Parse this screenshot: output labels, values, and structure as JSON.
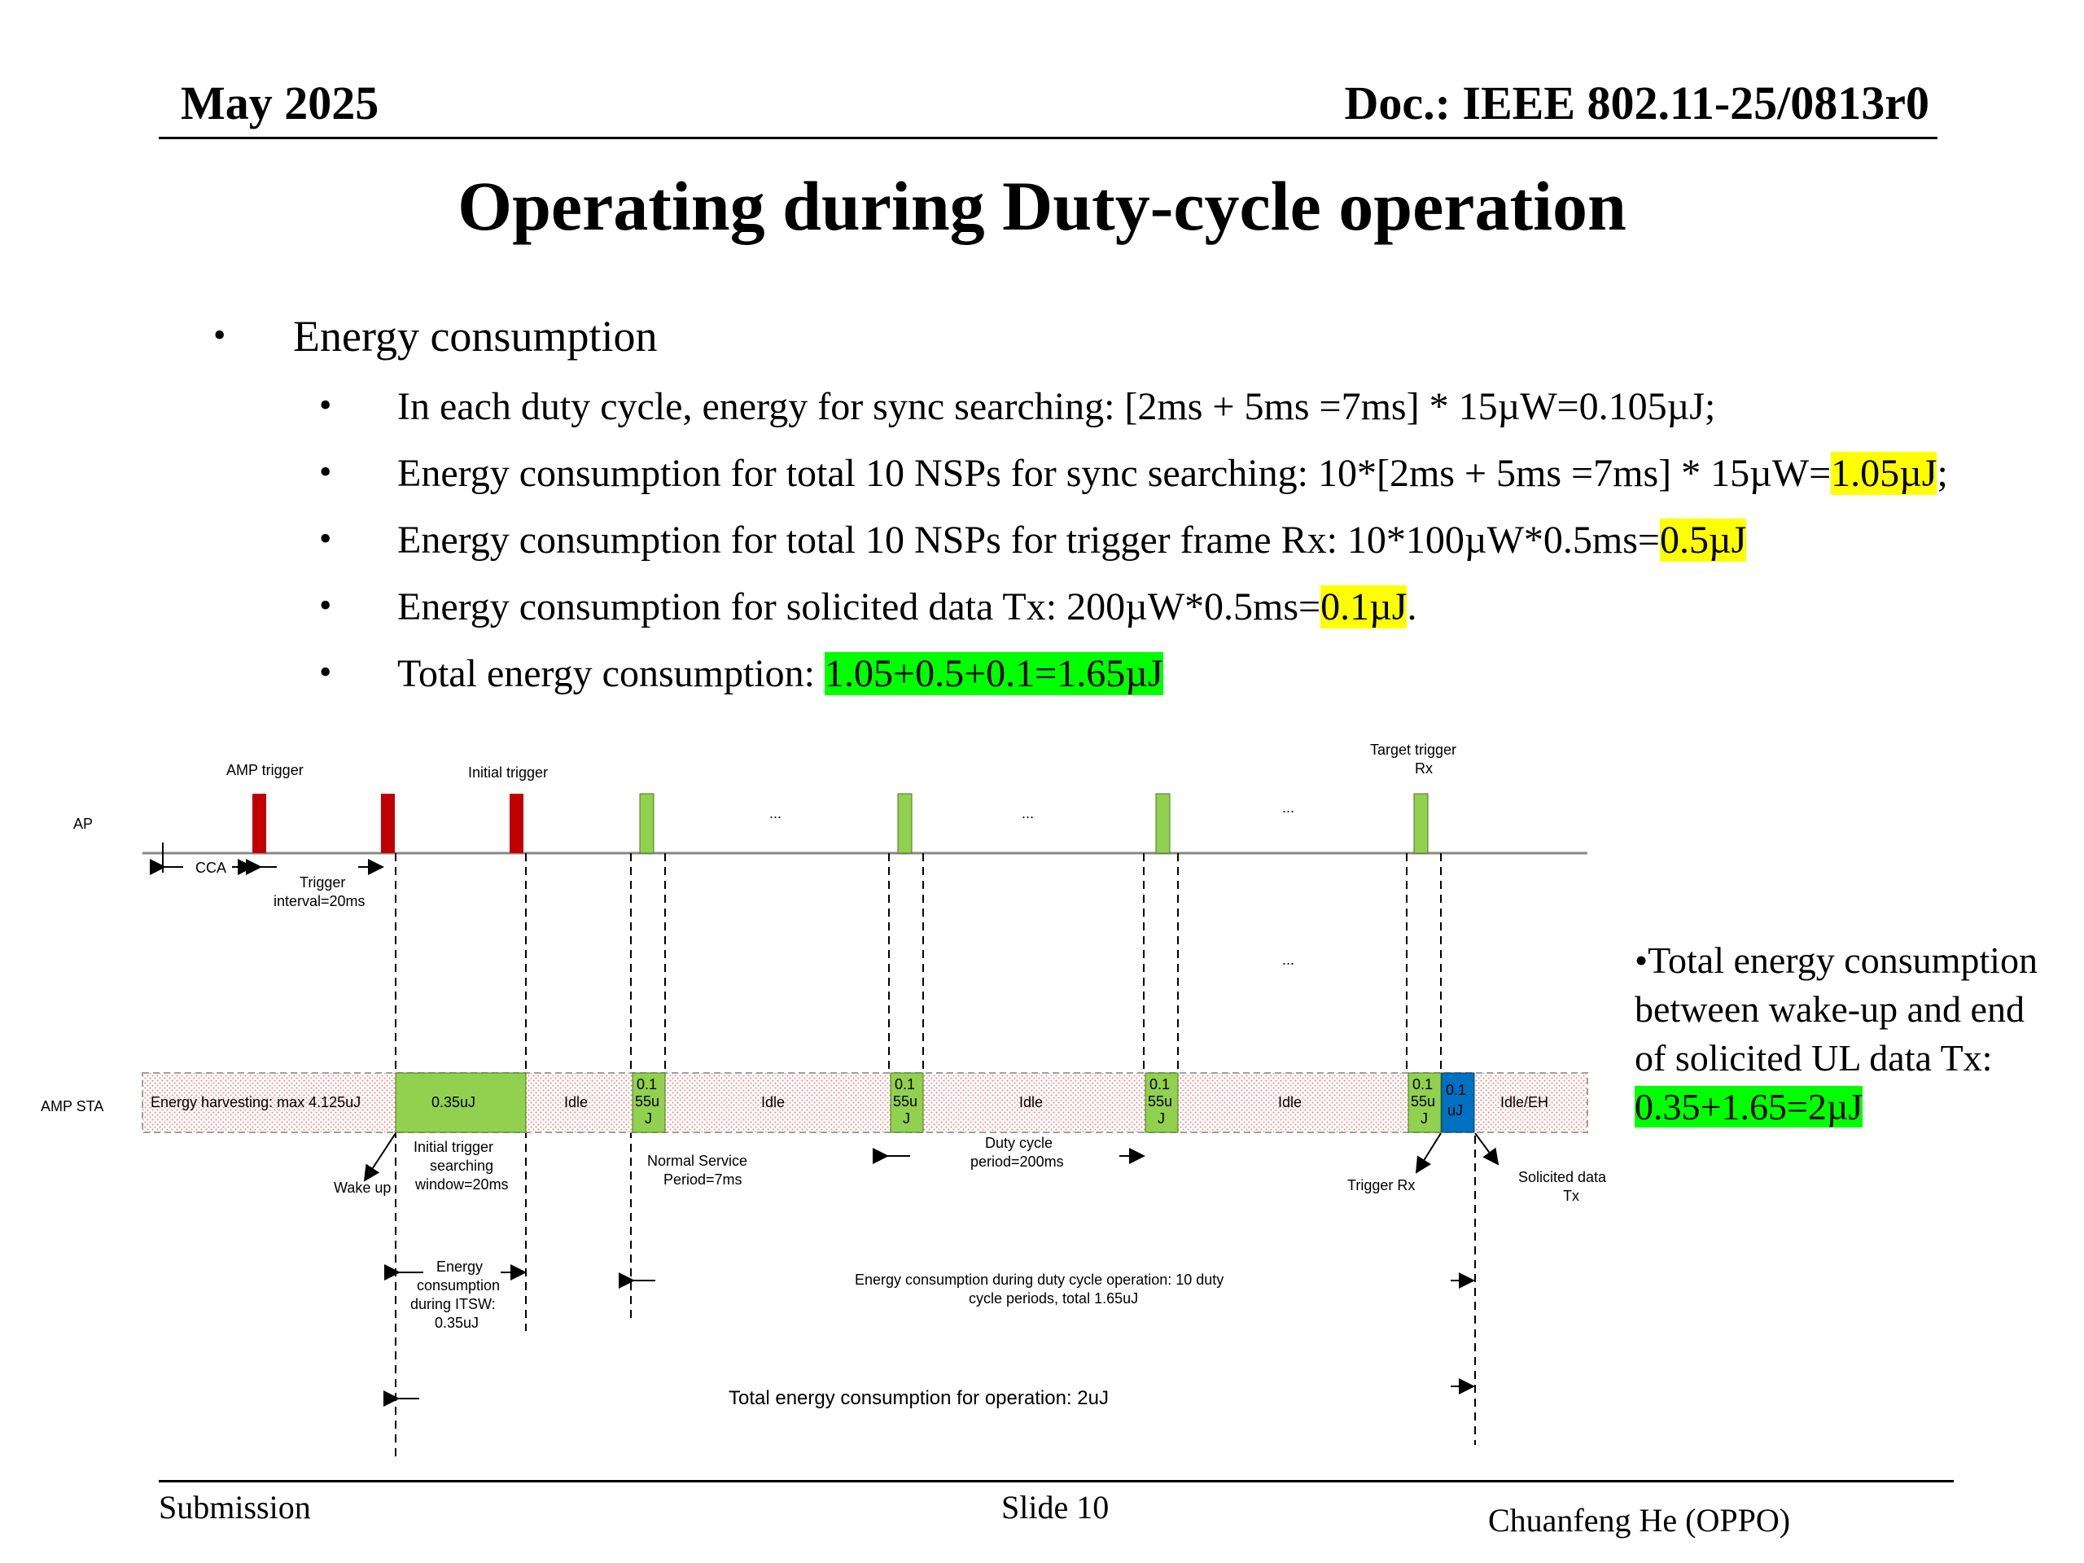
{
  "header": {
    "date": "May 2025",
    "doc": "Doc.: IEEE 802.11-25/0813r0"
  },
  "title": "Operating during Duty-cycle operation",
  "bullets": {
    "main": "Energy consumption",
    "items": [
      {
        "text": "In each duty cycle, energy for sync searching: [2ms + 5ms =7ms] * 15µW=0.105µJ;"
      },
      {
        "pre": "Energy consumption for total 10 NSPs for sync searching: 10*[2ms + 5ms =7ms] * 15µW=",
        "hl": "1.05µJ",
        "post": ";"
      },
      {
        "pre": "Energy consumption for total 10 NSPs for trigger frame Rx: 10*100µW*0.5ms=",
        "hl": "0.5µJ",
        "post": ""
      },
      {
        "pre": "Energy consumption for  solicited data Tx: 200µW*0.5ms=",
        "hl": "0.1µJ",
        "post": "."
      },
      {
        "pre": "Total energy consumption: ",
        "hl": "1.05+0.5+0.1=1.65µJ",
        "post": ""
      }
    ]
  },
  "diagram": {
    "ap_label": "AP",
    "sta_label": "AMP STA",
    "amp_trigger": "AMP trigger",
    "initial_trigger": "Initial trigger",
    "target_trigger_1": "Target trigger",
    "target_trigger_2": "Rx",
    "ellipsis": "...",
    "cca": "CCA",
    "trigger_interval_1": "Trigger",
    "trigger_interval_2": "interval=20ms",
    "energy_harvesting": "Energy harvesting: max 4.125uJ",
    "itsw_energy": "0.35uJ",
    "idle": "Idle",
    "idle_eh": "Idle/EH",
    "nsp_line1": "0.1",
    "nsp_line2": "55u",
    "nsp_line3": "J",
    "tx_line1": "0.1",
    "tx_line2": "uJ",
    "wake_up": "Wake up",
    "itsw_1": "Initial trigger",
    "itsw_2": "searching",
    "itsw_3": "window=20ms",
    "nsp_1": "Normal Service",
    "nsp_2": "Period=7ms",
    "dc_1": "Duty cycle",
    "dc_2": "period=200ms",
    "trigger_rx": "Trigger Rx",
    "sol_1": "Solicited data",
    "sol_2": "Tx",
    "ec_itsw_1": "Energy",
    "ec_itsw_2": "consumption",
    "ec_itsw_3": "during ITSW:",
    "ec_itsw_4": "0.35uJ",
    "ec_dc_1": "Energy consumption during duty cycle operation: 10 duty",
    "ec_dc_2": "cycle periods, total 1.65uJ",
    "total_op": "Total energy consumption for operation: 2uJ",
    "colors": {
      "red": "#c00000",
      "green": "#92d050",
      "blue": "#0070c0",
      "hatch": "#f4b6b6"
    }
  },
  "side_note": {
    "line1": "•Total energy consumption",
    "line2": "between wake-up and end",
    "line3": "of solicited UL data Tx:",
    "hl": "0.35+1.65=2µJ"
  },
  "footer": {
    "left": "Submission",
    "center": "Slide 10",
    "right": "Chuanfeng He (OPPO)"
  }
}
